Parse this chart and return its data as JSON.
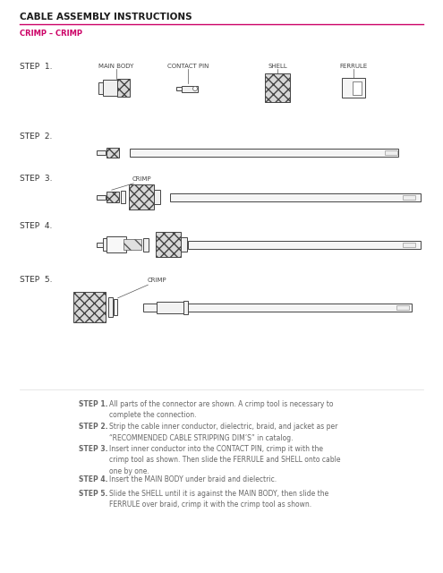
{
  "title": "CABLE ASSEMBLY INSTRUCTIONS",
  "subtitle": "CRIMP – CRIMP",
  "title_color": "#1a1a1a",
  "subtitle_color": "#cc0066",
  "line_color": "#cc0066",
  "bg_color": "#ffffff",
  "step_labels": [
    "STEP  1.",
    "STEP  2.",
    "STEP  3.",
    "STEP  4.",
    "STEP  5."
  ],
  "instructions": [
    [
      "STEP 1.",
      "All parts of the connector are shown. A crimp tool is necessary to\ncomplete the connection."
    ],
    [
      "STEP 2.",
      "Strip the cable inner conductor, dielectric, braid, and jacket as per\n“RECOMMENDED CABLE STRIPPING DIM’S” in catalog."
    ],
    [
      "STEP 3.",
      "Insert inner conductor into the CONTACT PIN, crimp it with the\ncrimp tool as shown. Then slide the FERRULE and SHELL onto cable\none by one."
    ],
    [
      "STEP 4.",
      "Insert the MAIN BODY under braid and dielectric."
    ],
    [
      "STEP 5.",
      "Slide the SHELL until it is against the MAIN BODY, then slide the\nFERRULE over braid, crimp it with the crimp tool as shown."
    ]
  ]
}
